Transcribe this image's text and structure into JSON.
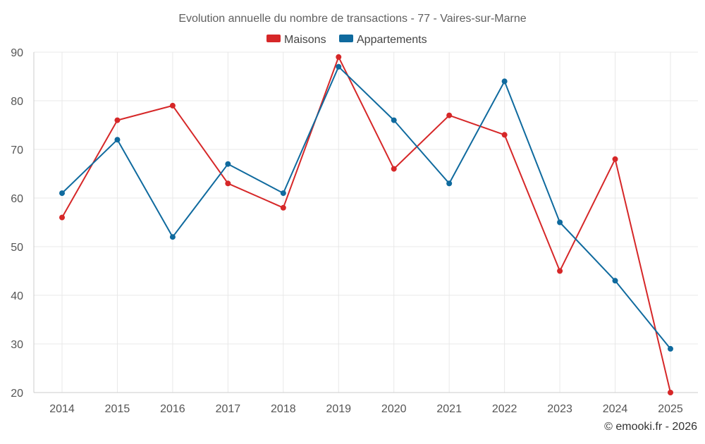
{
  "chart_data": {
    "type": "line",
    "title": "Evolution annuelle du nombre de transactions - 77 - Vaires-sur-Marne",
    "categories": [
      "2014",
      "2015",
      "2016",
      "2017",
      "2018",
      "2019",
      "2020",
      "2021",
      "2022",
      "2023",
      "2024",
      "2025"
    ],
    "series": [
      {
        "name": "Maisons",
        "color": "#d62728",
        "values": [
          56,
          76,
          79,
          63,
          58,
          89,
          66,
          77,
          73,
          45,
          68,
          20
        ]
      },
      {
        "name": "Appartements",
        "color": "#0f6a9e",
        "values": [
          61,
          72,
          52,
          67,
          61,
          87,
          76,
          63,
          84,
          55,
          43,
          29
        ]
      }
    ],
    "ylim": [
      20,
      90
    ],
    "yticks": [
      20,
      30,
      40,
      50,
      60,
      70,
      80,
      90
    ],
    "grid": true,
    "legend": "top-center"
  },
  "credit": "© emooki.fr - 2026"
}
